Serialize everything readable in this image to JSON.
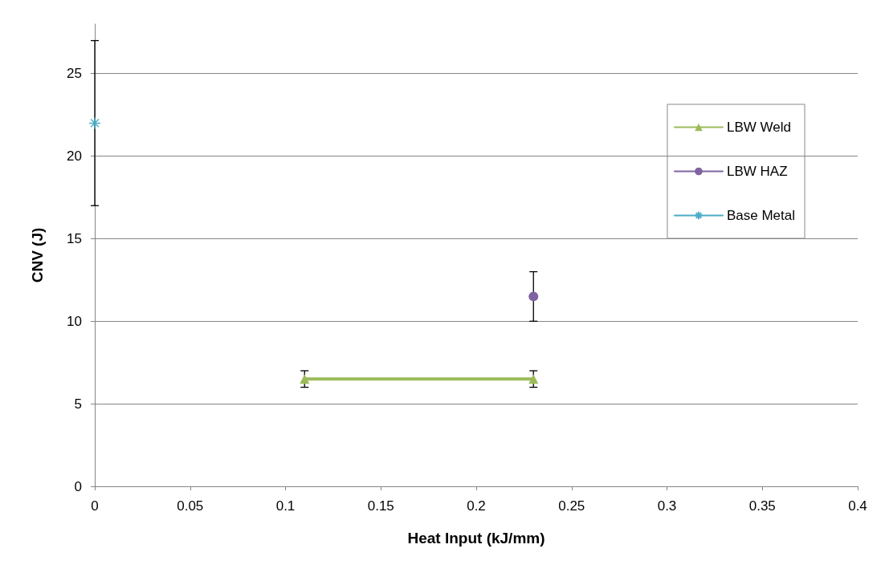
{
  "chart_data": {
    "type": "line",
    "xlabel": "Heat Input (kJ/mm)",
    "ylabel": "CNV (J)",
    "xlim": [
      0,
      0.4
    ],
    "xticks": [
      0,
      0.05,
      0.1,
      0.15,
      0.2,
      0.25,
      0.3,
      0.35,
      0.4
    ],
    "ylim": [
      0,
      28
    ],
    "yticks": [
      0,
      5,
      10,
      15,
      20,
      25
    ],
    "grid": "y",
    "legend": "right",
    "line_style": "solid",
    "series": [
      {
        "name": "LBW Weld",
        "color": "#9bbb59",
        "marker": "triangle",
        "x": [
          0.11,
          0.23
        ],
        "values": [
          6.5,
          6.5
        ],
        "errors": [
          0.5,
          0.5
        ]
      },
      {
        "name": "LBW HAZ",
        "color": "#8064a2",
        "marker": "circle",
        "x": [
          0.23
        ],
        "values": [
          11.5
        ],
        "errors": [
          1.5
        ]
      },
      {
        "name": "Base Metal",
        "color": "#4bacc6",
        "marker": "cross",
        "x": [
          0
        ],
        "values": [
          22
        ],
        "errors": [
          5
        ]
      }
    ]
  }
}
